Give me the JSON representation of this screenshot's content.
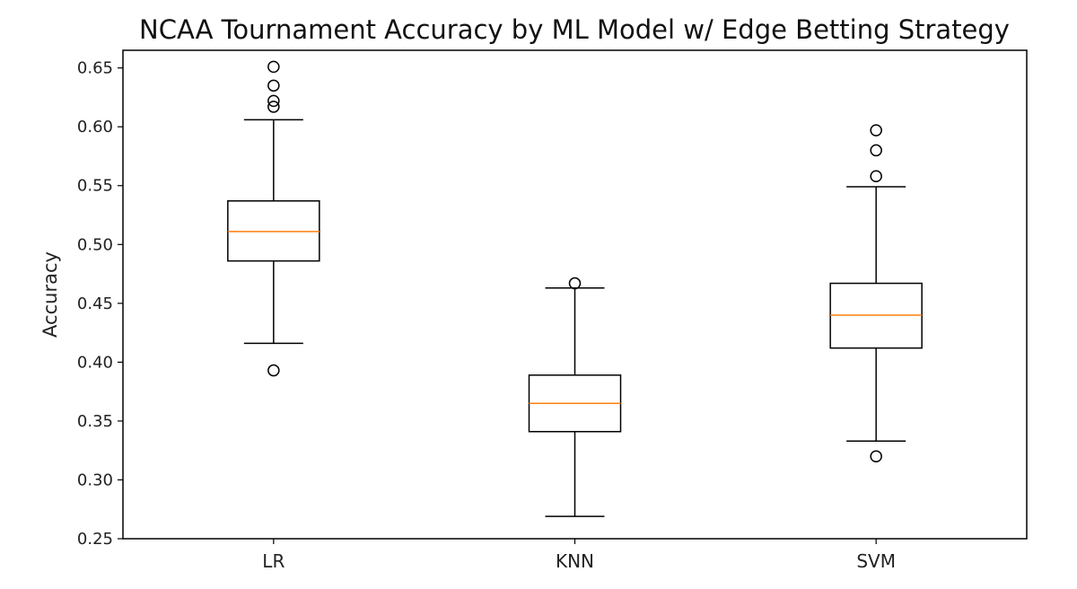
{
  "chart_data": {
    "type": "box",
    "title": "NCAA Tournament Accuracy by ML Model w/ Edge Betting Strategy",
    "xlabel": "",
    "ylabel": "Accuracy",
    "ylim": [
      0.25,
      0.665
    ],
    "yticks": [
      0.25,
      0.3,
      0.35,
      0.4,
      0.45,
      0.5,
      0.55,
      0.6,
      0.65
    ],
    "ytick_labels": [
      "0.25",
      "0.30",
      "0.35",
      "0.40",
      "0.45",
      "0.50",
      "0.55",
      "0.60",
      "0.65"
    ],
    "categories": [
      "LR",
      "KNN",
      "SVM"
    ],
    "boxes": [
      {
        "category": "LR",
        "whisker_low": 0.416,
        "q1": 0.486,
        "median": 0.511,
        "q3": 0.537,
        "whisker_high": 0.606,
        "outliers": [
          0.393,
          0.617,
          0.622,
          0.635,
          0.651
        ]
      },
      {
        "category": "KNN",
        "whisker_low": 0.269,
        "q1": 0.341,
        "median": 0.365,
        "q3": 0.389,
        "whisker_high": 0.463,
        "outliers": [
          0.467
        ]
      },
      {
        "category": "SVM",
        "whisker_low": 0.333,
        "q1": 0.412,
        "median": 0.44,
        "q3": 0.467,
        "whisker_high": 0.549,
        "outliers": [
          0.32,
          0.558,
          0.58,
          0.597
        ]
      }
    ],
    "grid": false,
    "colors": {
      "box": "#000000",
      "median": "#ff7f0e",
      "outlier": "#000000"
    }
  }
}
